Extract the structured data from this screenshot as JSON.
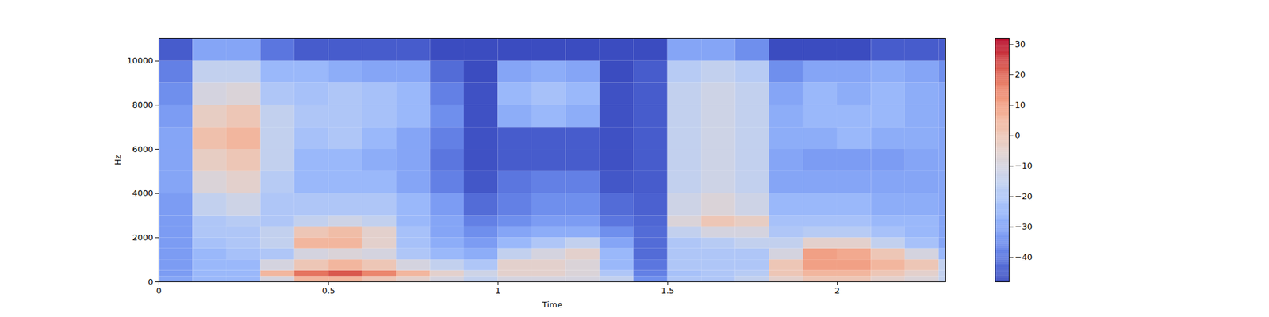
{
  "chart_data": {
    "type": "heatmap",
    "x_label": "Time",
    "y_label": "Hz",
    "xlim": [
      0,
      2.32
    ],
    "ylim": [
      0,
      11025
    ],
    "xticks": [
      0,
      0.5,
      1,
      1.5,
      2
    ],
    "yticks": [
      0,
      2000,
      4000,
      6000,
      8000,
      10000
    ],
    "time_edges": [
      0,
      0.1,
      0.2,
      0.3,
      0.4,
      0.5,
      0.6,
      0.7,
      0.8,
      0.9,
      1.0,
      1.1,
      1.2,
      1.3,
      1.4,
      1.5,
      1.6,
      1.7,
      1.8,
      1.9,
      2.0,
      2.1,
      2.2,
      2.3,
      2.32
    ],
    "freq_edges": [
      0,
      250,
      500,
      1000,
      1500,
      2000,
      2500,
      3000,
      4000,
      5000,
      6000,
      7000,
      8000,
      9000,
      10000,
      11025
    ],
    "cells": [
      [
        -30,
        -32,
        -32,
        -32,
        -32,
        -32,
        -32,
        -32,
        -30,
        -30,
        -30,
        -32,
        -35,
        -38,
        -45
      ],
      [
        -25,
        -25,
        -25,
        -25,
        -22,
        -20,
        -20,
        -15,
        -8,
        -3,
        2,
        -3,
        -10,
        -15,
        -30
      ],
      [
        -25,
        -25,
        -25,
        -22,
        -20,
        -20,
        -18,
        -12,
        -5,
        0,
        5,
        0,
        -8,
        -15,
        -30
      ],
      [
        -10,
        5,
        -10,
        -20,
        -15,
        -15,
        -20,
        -20,
        -18,
        -15,
        -15,
        -15,
        -20,
        -25,
        -40
      ],
      [
        5,
        18,
        0,
        -10,
        5,
        0,
        -15,
        -20,
        -25,
        -25,
        -22,
        -20,
        -22,
        -25,
        -45
      ],
      [
        5,
        22,
        5,
        -8,
        5,
        3,
        -12,
        -20,
        -25,
        -25,
        -20,
        -20,
        -20,
        -28,
        -45
      ],
      [
        0,
        15,
        0,
        -10,
        -5,
        -5,
        -15,
        -20,
        -25,
        -28,
        -25,
        -22,
        -22,
        -30,
        -45
      ],
      [
        -5,
        5,
        -10,
        -20,
        -22,
        -22,
        -25,
        -25,
        -30,
        -30,
        -30,
        -25,
        -25,
        -30,
        -45
      ],
      [
        -10,
        -5,
        -15,
        -25,
        -28,
        -30,
        -30,
        -32,
        -38,
        -40,
        -38,
        -35,
        -38,
        -42,
        -48
      ],
      [
        -15,
        -12,
        -20,
        -28,
        -32,
        -35,
        -38,
        -42,
        -46,
        -47,
        -47,
        -47,
        -47,
        -48,
        -48
      ],
      [
        -10,
        -5,
        -5,
        -15,
        -25,
        -30,
        -35,
        -38,
        -40,
        -45,
        -45,
        -28,
        -25,
        -30,
        -48
      ],
      [
        -10,
        -5,
        -5,
        -10,
        -20,
        -28,
        -32,
        -35,
        -38,
        -45,
        -45,
        -25,
        -22,
        -28,
        -48
      ],
      [
        -10,
        -8,
        -8,
        -5,
        -15,
        -28,
        -32,
        -35,
        -38,
        -45,
        -45,
        -28,
        -25,
        -30,
        -48
      ],
      [
        -15,
        -20,
        -25,
        -25,
        -30,
        -35,
        -40,
        -42,
        -46,
        -47,
        -47,
        -47,
        -47,
        -48,
        -48
      ],
      [
        -35,
        -38,
        -40,
        -42,
        -42,
        -42,
        -43,
        -44,
        -45,
        -45,
        -45,
        -45,
        -45,
        -45,
        -48
      ],
      [
        -20,
        -22,
        -20,
        -20,
        -20,
        -15,
        -8,
        -12,
        -15,
        -15,
        -15,
        -15,
        -15,
        -18,
        -30
      ],
      [
        -20,
        -20,
        -20,
        -20,
        -18,
        -10,
        0,
        -8,
        -12,
        -12,
        -12,
        -12,
        -12,
        -15,
        -30
      ],
      [
        -15,
        -18,
        -20,
        -20,
        -15,
        -10,
        -3,
        -12,
        -15,
        -15,
        -15,
        -15,
        -15,
        -18,
        -35
      ],
      [
        -5,
        0,
        0,
        -10,
        -15,
        -20,
        -22,
        -25,
        -30,
        -30,
        -28,
        -28,
        -30,
        -35,
        -48
      ],
      [
        0,
        5,
        10,
        10,
        -5,
        -18,
        -22,
        -25,
        -30,
        -32,
        -28,
        -25,
        -25,
        -30,
        -48
      ],
      [
        0,
        5,
        10,
        8,
        -5,
        -18,
        -22,
        -25,
        -30,
        -32,
        -25,
        -25,
        -28,
        -30,
        -48
      ],
      [
        -5,
        0,
        5,
        0,
        -15,
        -22,
        -25,
        -28,
        -30,
        -32,
        -28,
        -25,
        -25,
        -28,
        -45
      ],
      [
        -8,
        -5,
        0,
        -10,
        -22,
        -25,
        -25,
        -28,
        -30,
        -30,
        -28,
        -28,
        -28,
        -30,
        -45
      ],
      [
        -15,
        -15,
        -15,
        -25,
        -30,
        -30,
        -30,
        -30,
        -30,
        -30,
        -30,
        -30,
        -30,
        -35,
        -45
      ]
    ],
    "colorbar": {
      "range": [
        -48,
        32
      ],
      "ticks": [
        -40,
        -30,
        -20,
        -10,
        0,
        10,
        20,
        30
      ]
    }
  }
}
